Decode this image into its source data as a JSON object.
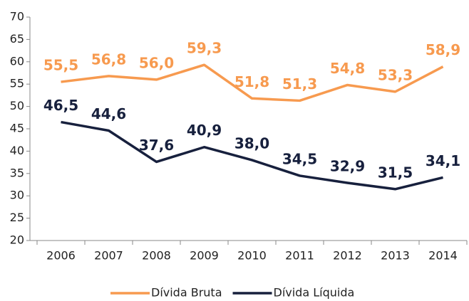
{
  "chart_data": {
    "type": "line",
    "categories": [
      "2006",
      "2007",
      "2008",
      "2009",
      "2010",
      "2011",
      "2012",
      "2013",
      "2014"
    ],
    "series": [
      {
        "name": "Dívida Bruta",
        "color": "#f79a4f",
        "values": [
          55.5,
          56.8,
          56.0,
          59.3,
          51.8,
          51.3,
          54.8,
          53.3,
          58.9
        ],
        "value_labels": [
          "55,5",
          "56,8",
          "56,0",
          "59,3",
          "51,8",
          "51,3",
          "54,8",
          "53,3",
          "58,9"
        ]
      },
      {
        "name": "Dívida Líquida",
        "color": "#17203d",
        "values": [
          46.5,
          44.6,
          37.6,
          40.9,
          38.0,
          34.5,
          32.9,
          31.5,
          34.1
        ],
        "value_labels": [
          "46,5",
          "44,6",
          "37,6",
          "40,9",
          "38,0",
          "34,5",
          "32,9",
          "31,5",
          "34,1"
        ]
      }
    ],
    "ylim": [
      20,
      70
    ],
    "yticks": [
      20,
      25,
      30,
      35,
      40,
      45,
      50,
      55,
      60,
      65,
      70
    ],
    "grid": false,
    "legend": "bottom"
  }
}
